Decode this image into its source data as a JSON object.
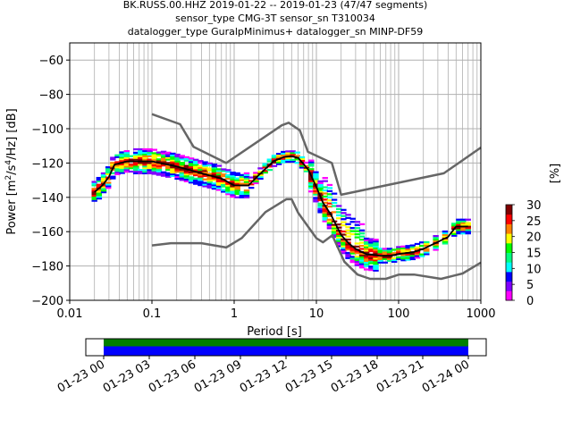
{
  "chart_data": [
    {
      "type": "heatmap",
      "title_lines": [
        "BK.RUSS.00.HHZ   2019-01-22 -- 2019-01-23  (47/47 segments)",
        "sensor_type CMG-3T sensor_sn T310034",
        "datalogger_type GuralpMinimus+ datalogger_sn MINP-DF59"
      ],
      "xlabel": "Period [s]",
      "ylabel_parts": {
        "prefix": "Power [m",
        "sup1": "2",
        "mid": "/s",
        "sup2": "4",
        "suffix": "/Hz] [dB]"
      },
      "x_scale": "log",
      "xlim": [
        0.01,
        1000
      ],
      "ylim": [
        -200,
        -50
      ],
      "x_ticks": [
        {
          "value": 0.01,
          "label": "0.01"
        },
        {
          "value": 0.1,
          "label": "0.1"
        },
        {
          "value": 1,
          "label": "1"
        },
        {
          "value": 10,
          "label": "10"
        },
        {
          "value": 100,
          "label": "100"
        },
        {
          "value": 1000,
          "label": "1000"
        }
      ],
      "y_ticks": [
        {
          "value": -60,
          "label": "−60"
        },
        {
          "value": -80,
          "label": "−80"
        },
        {
          "value": -100,
          "label": "−100"
        },
        {
          "value": -120,
          "label": "−120"
        },
        {
          "value": -140,
          "label": "−140"
        },
        {
          "value": -160,
          "label": "−160"
        },
        {
          "value": -180,
          "label": "−180"
        },
        {
          "value": -200,
          "label": "−200"
        }
      ],
      "grid": true,
      "noise_models": {
        "high": [
          [
            0.1,
            -91.5
          ],
          [
            0.22,
            -97.4
          ],
          [
            0.32,
            -110.5
          ],
          [
            0.8,
            -120
          ],
          [
            3.8,
            -98
          ],
          [
            4.6,
            -96.5
          ],
          [
            6.3,
            -101
          ],
          [
            7.9,
            -113.5
          ],
          [
            15.4,
            -120
          ],
          [
            20,
            -138.5
          ],
          [
            354.8,
            -126
          ],
          [
            1000,
            -111
          ]
        ],
        "low": [
          [
            0.1,
            -168
          ],
          [
            0.17,
            -166.7
          ],
          [
            0.4,
            -166.7
          ],
          [
            0.8,
            -169.2
          ],
          [
            1.24,
            -163.7
          ],
          [
            2.4,
            -148.6
          ],
          [
            4.3,
            -141.1
          ],
          [
            5,
            -141.1
          ],
          [
            6,
            -149
          ],
          [
            10,
            -163.8
          ],
          [
            12,
            -166.2
          ],
          [
            15.6,
            -162.1
          ],
          [
            21.9,
            -177.5
          ],
          [
            31.6,
            -185
          ],
          [
            45,
            -187.5
          ],
          [
            70,
            -187.5
          ],
          [
            101,
            -185
          ],
          [
            154,
            -185
          ],
          [
            328,
            -187.5
          ],
          [
            600,
            -184.4
          ],
          [
            1000,
            -178
          ]
        ]
      },
      "median_psd": [
        [
          0.02,
          -137
        ],
        [
          0.025,
          -133
        ],
        [
          0.03,
          -128
        ],
        [
          0.035,
          -121
        ],
        [
          0.05,
          -119
        ],
        [
          0.1,
          -119
        ],
        [
          0.2,
          -122
        ],
        [
          0.4,
          -126
        ],
        [
          0.7,
          -129
        ],
        [
          1.0,
          -133
        ],
        [
          1.5,
          -133
        ],
        [
          2.0,
          -127
        ],
        [
          3.0,
          -119
        ],
        [
          4.0,
          -116.5
        ],
        [
          5.0,
          -116
        ],
        [
          6.0,
          -117
        ],
        [
          8.0,
          -124
        ],
        [
          10.0,
          -134
        ],
        [
          12.0,
          -143
        ],
        [
          15.0,
          -150
        ],
        [
          20.0,
          -162
        ],
        [
          25.0,
          -167
        ],
        [
          30.0,
          -170
        ],
        [
          40.0,
          -173
        ],
        [
          60.0,
          -174
        ],
        [
          80.0,
          -174
        ],
        [
          100.0,
          -173
        ],
        [
          150.0,
          -172
        ],
        [
          200.0,
          -170
        ],
        [
          300.0,
          -166
        ],
        [
          400.0,
          -163
        ],
        [
          500.0,
          -157
        ],
        [
          700.0,
          -157
        ]
      ],
      "colorbar": {
        "label": "[%]",
        "range": [
          0,
          30
        ],
        "ticks": [
          {
            "value": 0,
            "label": "0"
          },
          {
            "value": 5,
            "label": "5"
          },
          {
            "value": 10,
            "label": "10"
          },
          {
            "value": 15,
            "label": "15"
          },
          {
            "value": 20,
            "label": "20"
          },
          {
            "value": 25,
            "label": "25"
          },
          {
            "value": 30,
            "label": "30"
          }
        ],
        "colormap": [
          "#ffffff",
          "#ff00ff",
          "#8000ff",
          "#0000ff",
          "#00ffff",
          "#00ff80",
          "#00ff00",
          "#ffff00",
          "#ff8000",
          "#ff0000",
          "#800000"
        ]
      },
      "colors": {
        "median": "#000000",
        "noise_model": "#666666",
        "grid": "#b0b0b0",
        "axis": "#000000"
      }
    },
    {
      "type": "timeline",
      "x_ticks": [
        "01-23 00",
        "01-23 03",
        "01-23 06",
        "01-23 09",
        "01-23 12",
        "01-23 15",
        "01-23 18",
        "01-23 21",
        "01-24 00"
      ],
      "coverage_fraction": [
        0.0,
        1.0
      ],
      "colors": {
        "data_coverage": "#008000",
        "segment_coverage": "#0000ff"
      }
    }
  ]
}
